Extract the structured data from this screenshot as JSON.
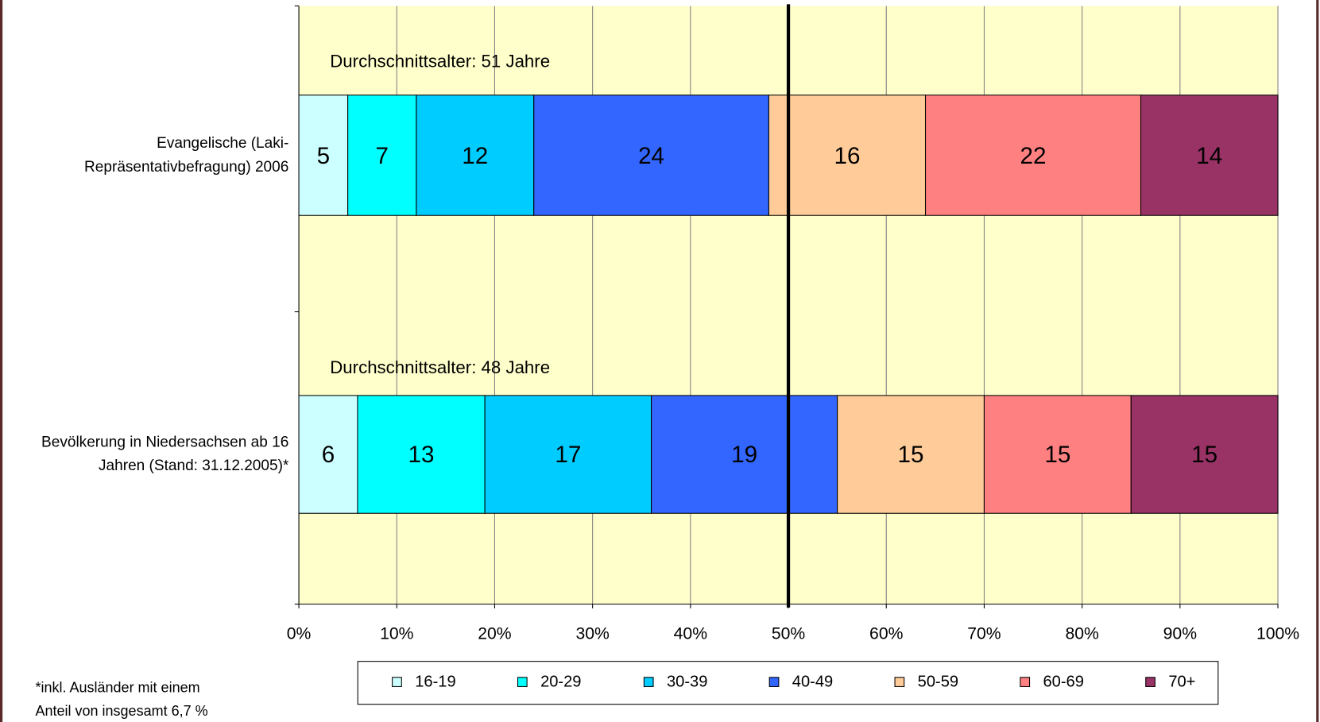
{
  "chart_data": {
    "type": "stacked_bar_horizontal",
    "categories": [
      [
        "Evangelische (Laki-",
        "Repräsentativbefragung) 2006"
      ],
      [
        "Bevölkerung in Niedersachsen ab 16",
        "Jahren (Stand: 31.12.2005)*"
      ]
    ],
    "series": [
      {
        "name": "16-19",
        "color": "#ccffff",
        "values": [
          5,
          6
        ]
      },
      {
        "name": "20-29",
        "color": "#00ffff",
        "values": [
          7,
          13
        ]
      },
      {
        "name": "30-39",
        "color": "#00ccff",
        "values": [
          12,
          17
        ]
      },
      {
        "name": "40-49",
        "color": "#3366ff",
        "values": [
          24,
          19
        ]
      },
      {
        "name": "50-59",
        "color": "#ffcc99",
        "values": [
          16,
          15
        ]
      },
      {
        "name": "60-69",
        "color": "#ff8080",
        "values": [
          22,
          15
        ]
      },
      {
        "name": "70+",
        "color": "#993366",
        "values": [
          14,
          15
        ]
      }
    ],
    "annotations": [
      "Durchschnittsalter: 51 Jahre",
      "Durchschnittsalter: 48 Jahre"
    ],
    "footnote": [
      "*inkl. Ausländer mit einem",
      "Anteil von insgesamt 6,7 %"
    ],
    "xlim": [
      0,
      100
    ],
    "xticks": [
      {
        "value": 0,
        "label": "0%"
      },
      {
        "value": 10,
        "label": "10%"
      },
      {
        "value": 20,
        "label": "20%"
      },
      {
        "value": 30,
        "label": "30%"
      },
      {
        "value": 40,
        "label": "40%"
      },
      {
        "value": 50,
        "label": "50%"
      },
      {
        "value": 60,
        "label": "60%"
      },
      {
        "value": 70,
        "label": "70%"
      },
      {
        "value": 80,
        "label": "80%"
      },
      {
        "value": 90,
        "label": "90%"
      },
      {
        "value": 100,
        "label": "100%"
      }
    ],
    "reference_line": 50,
    "grid": true,
    "legend": "bottom",
    "plot_background": "#ffffcc"
  }
}
